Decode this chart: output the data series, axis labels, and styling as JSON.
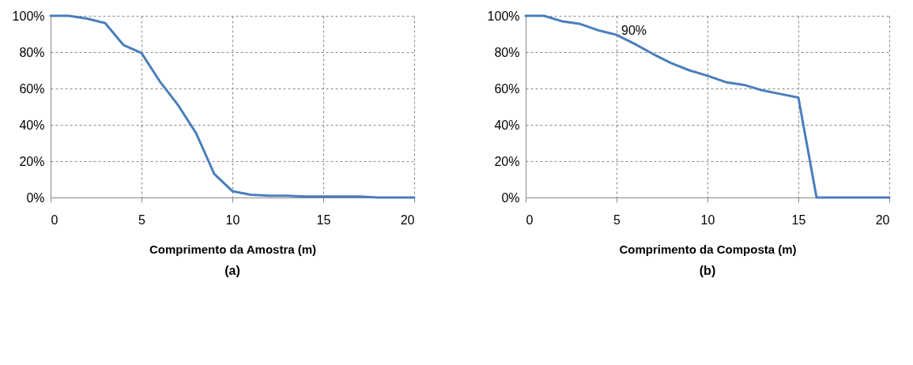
{
  "chart_data": [
    {
      "type": "line",
      "xlabel": "Comprimento da Amostra (m)",
      "x": [
        0,
        1,
        2,
        3,
        4,
        5,
        6,
        7,
        8,
        9,
        10,
        11,
        12,
        13,
        14,
        15,
        16,
        17,
        18,
        19,
        20
      ],
      "series": [
        {
          "color": "#4a7ebb",
          "values": [
            100,
            100,
            98.5,
            96,
            84,
            79.5,
            64,
            51,
            35.5,
            13,
            3.5,
            1.5,
            1,
            1,
            0.5,
            0.5,
            0.5,
            0.5,
            0,
            0,
            0
          ]
        }
      ],
      "xlim": [
        0,
        20
      ],
      "xticks": [
        0,
        5,
        10,
        15,
        20
      ],
      "ylim": [
        0,
        100
      ],
      "yticks": [
        {
          "value": 0,
          "label": "0%"
        },
        {
          "value": 20,
          "label": "20%"
        },
        {
          "value": 40,
          "label": "40%"
        },
        {
          "value": 60,
          "label": "60%"
        },
        {
          "value": 80,
          "label": "80%"
        },
        {
          "value": 100,
          "label": "100%"
        }
      ],
      "grid": true,
      "marker": "none",
      "line_style": "solid",
      "annotations": [
        "(a)"
      ]
    },
    {
      "type": "line",
      "xlabel": "Comprimento da Composta (m)",
      "x": [
        0,
        1,
        2,
        3,
        4,
        5,
        6,
        7,
        8,
        9,
        10,
        11,
        12,
        13,
        14,
        15,
        16,
        17,
        18,
        19,
        20
      ],
      "series": [
        {
          "color": "#4a7ebb",
          "values": [
            100,
            100,
            97,
            95.5,
            92,
            89.5,
            84.5,
            79,
            74,
            70,
            67,
            63.5,
            62,
            59,
            57,
            55,
            0,
            0,
            0,
            0,
            0
          ]
        }
      ],
      "xlim": [
        0,
        20
      ],
      "xticks": [
        0,
        5,
        10,
        15,
        20
      ],
      "ylim": [
        0,
        100
      ],
      "yticks": [
        {
          "value": 0,
          "label": "0%"
        },
        {
          "value": 20,
          "label": "20%"
        },
        {
          "value": 40,
          "label": "40%"
        },
        {
          "value": 60,
          "label": "60%"
        },
        {
          "value": 80,
          "label": "80%"
        },
        {
          "value": 100,
          "label": "100%"
        }
      ],
      "grid": true,
      "marker": "none",
      "line_style": "solid",
      "annotations": [
        {
          "text": "90%",
          "x": 5,
          "y": 90
        },
        "(b)"
      ]
    }
  ]
}
